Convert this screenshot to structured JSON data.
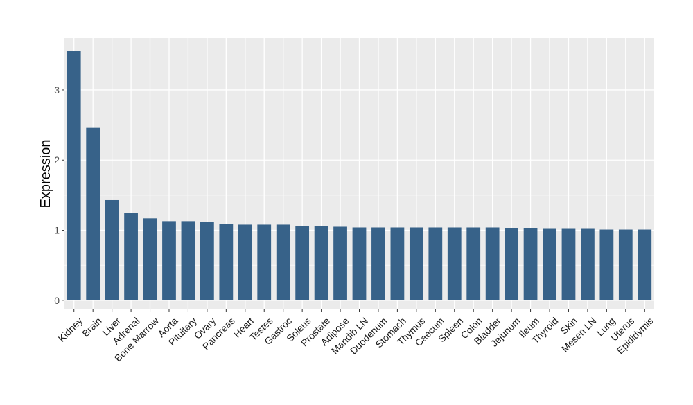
{
  "chart_data": {
    "type": "bar",
    "title": "",
    "xlabel": "",
    "ylabel": "Expression",
    "categories": [
      "Kidney",
      "Brain",
      "Liver",
      "Adrenal",
      "Bone Marrow",
      "Aorta",
      "Pituitary",
      "Ovary",
      "Pancreas",
      "Heart",
      "Testes",
      "Gastroc",
      "Soleus",
      "Prostate",
      "Adipose",
      "Mandib LN",
      "Duodenum",
      "Stomach",
      "Thymus",
      "Caecum",
      "Spleen",
      "Colon",
      "Bladder",
      "Jejunum",
      "Ileum",
      "Thyroid",
      "Skin",
      "Mesen LN",
      "Lung",
      "Uterus",
      "Epididymis"
    ],
    "values": [
      3.56,
      2.46,
      1.43,
      1.25,
      1.17,
      1.13,
      1.13,
      1.12,
      1.09,
      1.08,
      1.08,
      1.08,
      1.06,
      1.06,
      1.05,
      1.04,
      1.04,
      1.04,
      1.04,
      1.04,
      1.04,
      1.04,
      1.04,
      1.03,
      1.03,
      1.02,
      1.02,
      1.02,
      1.01,
      1.01,
      1.01
    ],
    "ylim": [
      -0.13,
      3.74
    ],
    "yticks": [
      0,
      1,
      2,
      3
    ],
    "grid": true,
    "legend": "none",
    "colors": {
      "bar": "#376289",
      "panel": "#ebebeb",
      "grid": "#ffffff"
    }
  }
}
